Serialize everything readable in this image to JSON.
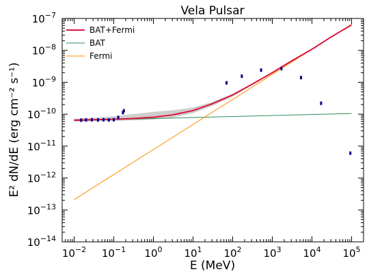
{
  "chart_data": {
    "type": "line",
    "title": "Vela Pulsar",
    "xlabel": "E (MeV)",
    "ylabel": "E² dN/dE (erg cm⁻² s⁻¹)",
    "xscale": "log",
    "yscale": "log",
    "xlim": [
      0.005,
      200000
    ],
    "ylim": [
      1e-14,
      1e-07
    ],
    "x_ticks": [
      {
        "value": 0.01,
        "base": "10",
        "exp": "−2"
      },
      {
        "value": 0.1,
        "base": "10",
        "exp": "−1"
      },
      {
        "value": 1,
        "base": "10",
        "exp": "0"
      },
      {
        "value": 10,
        "base": "10",
        "exp": "1"
      },
      {
        "value": 100,
        "base": "10",
        "exp": "2"
      },
      {
        "value": 1000,
        "base": "10",
        "exp": "3"
      },
      {
        "value": 10000,
        "base": "10",
        "exp": "4"
      },
      {
        "value": 100000,
        "base": "10",
        "exp": "5"
      }
    ],
    "y_ticks": [
      {
        "value": 1e-14,
        "base": "10",
        "exp": "−14"
      },
      {
        "value": 1e-13,
        "base": "10",
        "exp": "−13"
      },
      {
        "value": 1e-12,
        "base": "10",
        "exp": "−12"
      },
      {
        "value": 1e-11,
        "base": "10",
        "exp": "−11"
      },
      {
        "value": 1e-10,
        "base": "10",
        "exp": "−10"
      },
      {
        "value": 1e-09,
        "base": "10",
        "exp": "−9"
      },
      {
        "value": 1e-08,
        "base": "10",
        "exp": "−8"
      },
      {
        "value": 1e-07,
        "base": "10",
        "exp": "−7"
      }
    ],
    "grid": false,
    "legend_position": "top-left",
    "series": [
      {
        "name": "BAT+Fermi",
        "kind": "line",
        "color": "#dc143c",
        "x": [
          0.01,
          0.03,
          0.1,
          0.3,
          1,
          3,
          10,
          30,
          100,
          300,
          1000,
          3000,
          10000,
          30000,
          100000
        ],
        "y": [
          6.5e-11,
          6.7e-11,
          6.9e-11,
          7.3e-11,
          8e-11,
          9.5e-11,
          1.3e-10,
          2.1e-10,
          4e-10,
          8.5e-10,
          2e-09,
          4.6e-09,
          1.08e-08,
          2.6e-08,
          6.3e-08
        ]
      },
      {
        "name": "BAT",
        "kind": "line",
        "color": "#2e8b57",
        "x": [
          0.01,
          100000
        ],
        "y": [
          6.3e-11,
          1.05e-10
        ]
      },
      {
        "name": "Fermi",
        "kind": "line",
        "color": "#ff8c00",
        "x": [
          0.01,
          100000
        ],
        "y": [
          2.1e-13,
          6.6e-08
        ]
      },
      {
        "name": "",
        "kind": "band",
        "color": "#bdbdbd",
        "x": [
          0.01,
          0.03,
          0.1,
          0.3,
          1,
          3,
          10,
          30,
          100,
          300,
          1000
        ],
        "y_low": [
          5.8e-11,
          6e-11,
          6.2e-11,
          6.4e-11,
          6.8e-11,
          7.8e-11,
          1.07e-10,
          1.8e-10,
          3.6e-10,
          8e-10,
          1.9e-09
        ],
        "y_high": [
          7.2e-11,
          7.7e-11,
          8.6e-11,
          1e-10,
          1.18e-10,
          1.33e-10,
          1.62e-10,
          2.4e-10,
          4.4e-10,
          9e-10,
          2.1e-09
        ]
      },
      {
        "name": "",
        "kind": "points",
        "color": "#00008b",
        "x": [
          0.015,
          0.02,
          0.028,
          0.04,
          0.055,
          0.075,
          0.1,
          0.13,
          0.17,
          0.18,
          70,
          170,
          520,
          1700,
          5300,
          17000,
          93000
        ],
        "y": [
          6.5e-11,
          6.6e-11,
          6.7e-11,
          6.6e-11,
          6.7e-11,
          6.6e-11,
          6.7e-11,
          7.9e-11,
          1.12e-10,
          1.28e-10,
          9.6e-10,
          1.55e-09,
          2.4e-09,
          2.7e-09,
          1.4e-09,
          2.2e-10,
          6e-12
        ]
      }
    ]
  }
}
